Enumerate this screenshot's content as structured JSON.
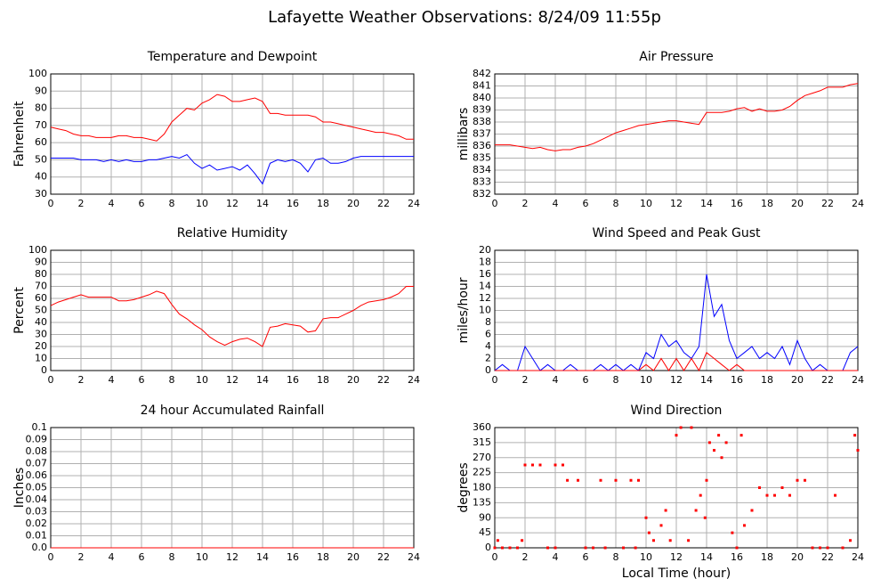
{
  "title": "Lafayette Weather Observations: 8/24/09 11:55p",
  "chart_data": [
    {
      "type": "line",
      "title": "Temperature and Dewpoint",
      "ylabel": "Fahrenheit",
      "xlim": [
        0,
        24
      ],
      "xticks": [
        0,
        2,
        4,
        6,
        8,
        10,
        12,
        14,
        16,
        18,
        20,
        22,
        24
      ],
      "ylim": [
        30,
        100
      ],
      "yticks": [
        30,
        40,
        50,
        60,
        70,
        80,
        90,
        100
      ],
      "grid": true,
      "x": [
        0,
        0.5,
        1,
        1.5,
        2,
        2.5,
        3,
        3.5,
        4,
        4.5,
        5,
        5.5,
        6,
        6.5,
        7,
        7.5,
        8,
        8.5,
        9,
        9.5,
        10,
        10.5,
        11,
        11.5,
        12,
        12.5,
        13,
        13.5,
        14,
        14.5,
        15,
        15.5,
        16,
        16.5,
        17,
        17.5,
        18,
        18.5,
        19,
        19.5,
        20,
        20.5,
        21,
        21.5,
        22,
        22.5,
        23,
        23.5,
        24
      ],
      "series": [
        {
          "color": "#ff0000",
          "values": [
            69,
            68,
            67,
            65,
            64,
            64,
            63,
            63,
            63,
            64,
            64,
            63,
            63,
            62,
            61,
            65,
            72,
            76,
            80,
            79,
            83,
            85,
            88,
            87,
            84,
            84,
            85,
            86,
            84,
            77,
            77,
            76,
            76,
            76,
            76,
            75,
            72,
            72,
            71,
            70,
            69,
            68,
            67,
            66,
            66,
            65,
            64,
            62,
            62
          ]
        },
        {
          "color": "#0000ff",
          "values": [
            51,
            51,
            51,
            51,
            50,
            50,
            50,
            49,
            50,
            49,
            50,
            49,
            49,
            50,
            50,
            51,
            52,
            51,
            53,
            48,
            45,
            47,
            44,
            45,
            46,
            44,
            47,
            42,
            36,
            48,
            50,
            49,
            50,
            48,
            43,
            50,
            51,
            48,
            48,
            49,
            51,
            52,
            52,
            52,
            52,
            52,
            52,
            52,
            52
          ]
        }
      ]
    },
    {
      "type": "line",
      "title": "Air Pressure",
      "ylabel": "millibars",
      "xlim": [
        0,
        24
      ],
      "xticks": [
        0,
        2,
        4,
        6,
        8,
        10,
        12,
        14,
        16,
        18,
        20,
        22,
        24
      ],
      "ylim": [
        832,
        842
      ],
      "yticks": [
        832,
        833,
        834,
        835,
        836,
        837,
        838,
        839,
        840,
        841,
        842
      ],
      "grid": true,
      "x": [
        0,
        0.5,
        1,
        1.5,
        2,
        2.5,
        3,
        3.5,
        4,
        4.5,
        5,
        5.5,
        6,
        6.5,
        7,
        7.5,
        8,
        8.5,
        9,
        9.5,
        10,
        10.5,
        11,
        11.5,
        12,
        12.5,
        13,
        13.5,
        14,
        14.5,
        15,
        15.5,
        16,
        16.5,
        17,
        17.5,
        18,
        18.5,
        19,
        19.5,
        20,
        20.5,
        21,
        21.5,
        22,
        22.5,
        23,
        23.5,
        24
      ],
      "series": [
        {
          "color": "#ff0000",
          "values": [
            836.1,
            836.1,
            836.1,
            836,
            835.9,
            835.8,
            835.9,
            835.7,
            835.6,
            835.7,
            835.7,
            835.9,
            836,
            836.2,
            836.5,
            836.8,
            837.1,
            837.3,
            837.5,
            837.7,
            837.8,
            837.9,
            838,
            838.1,
            838.1,
            838,
            837.9,
            837.8,
            838.8,
            838.8,
            838.8,
            838.9,
            839.1,
            839.2,
            838.9,
            839.1,
            838.9,
            838.9,
            839,
            839.3,
            839.8,
            840.2,
            840.4,
            840.6,
            840.9,
            840.9,
            840.9,
            841.1,
            841.2
          ]
        }
      ]
    },
    {
      "type": "line",
      "title": "Relative Humidity",
      "ylabel": "Percent",
      "xlim": [
        0,
        24
      ],
      "xticks": [
        0,
        2,
        4,
        6,
        8,
        10,
        12,
        14,
        16,
        18,
        20,
        22,
        24
      ],
      "ylim": [
        0,
        100
      ],
      "yticks": [
        0,
        10,
        20,
        30,
        40,
        50,
        60,
        70,
        80,
        90,
        100
      ],
      "grid": true,
      "x": [
        0,
        0.5,
        1,
        1.5,
        2,
        2.5,
        3,
        3.5,
        4,
        4.5,
        5,
        5.5,
        6,
        6.5,
        7,
        7.5,
        8,
        8.5,
        9,
        9.5,
        10,
        10.5,
        11,
        11.5,
        12,
        12.5,
        13,
        13.5,
        14,
        14.5,
        15,
        15.5,
        16,
        16.5,
        17,
        17.5,
        18,
        18.5,
        19,
        19.5,
        20,
        20.5,
        21,
        21.5,
        22,
        22.5,
        23,
        23.5,
        24
      ],
      "series": [
        {
          "color": "#ff0000",
          "values": [
            54,
            57,
            59,
            61,
            63,
            61,
            61,
            61,
            61,
            58,
            58,
            59,
            61,
            63,
            66,
            64,
            55,
            47,
            43,
            38,
            34,
            28,
            24,
            21,
            24,
            26,
            27,
            24,
            20,
            36,
            37,
            39,
            38,
            37,
            32,
            33,
            43,
            44,
            44,
            47,
            50,
            54,
            57,
            58,
            59,
            61,
            64,
            70,
            70
          ]
        }
      ]
    },
    {
      "type": "line",
      "title": "Wind Speed and Peak Gust",
      "ylabel": "miles/hour",
      "xlim": [
        0,
        24
      ],
      "xticks": [
        0,
        2,
        4,
        6,
        8,
        10,
        12,
        14,
        16,
        18,
        20,
        22,
        24
      ],
      "ylim": [
        0,
        20
      ],
      "yticks": [
        0,
        2,
        4,
        6,
        8,
        10,
        12,
        14,
        16,
        18,
        20
      ],
      "grid": true,
      "x": [
        0,
        0.5,
        1,
        1.5,
        2,
        2.5,
        3,
        3.5,
        4,
        4.5,
        5,
        5.5,
        6,
        6.5,
        7,
        7.5,
        8,
        8.5,
        9,
        9.5,
        10,
        10.5,
        11,
        11.5,
        12,
        12.5,
        13,
        13.5,
        14,
        14.5,
        15,
        15.5,
        16,
        16.5,
        17,
        17.5,
        18,
        18.5,
        19,
        19.5,
        20,
        20.5,
        21,
        21.5,
        22,
        22.5,
        23,
        23.5,
        24
      ],
      "series": [
        {
          "color": "#0000ff",
          "values": [
            0,
            1,
            0,
            0,
            4,
            2,
            0,
            1,
            0,
            0,
            1,
            0,
            0,
            0,
            1,
            0,
            1,
            0,
            1,
            0,
            3,
            2,
            6,
            4,
            5,
            3,
            2,
            4,
            16,
            9,
            11,
            5,
            2,
            3,
            4,
            2,
            3,
            2,
            4,
            1,
            5,
            2,
            0,
            1,
            0,
            0,
            0,
            3,
            4
          ]
        },
        {
          "color": "#ff0000",
          "values": [
            0,
            0,
            0,
            0,
            0,
            0,
            0,
            0,
            0,
            0,
            0,
            0,
            0,
            0,
            0,
            0,
            0,
            0,
            0,
            0,
            1,
            0,
            2,
            0,
            2,
            0,
            2,
            0,
            3,
            2,
            1,
            0,
            1,
            0,
            0,
            0,
            0,
            0,
            0,
            0,
            0,
            0,
            0,
            0,
            0,
            0,
            0,
            0,
            0
          ]
        }
      ]
    },
    {
      "type": "line",
      "title": "24 hour Accumulated Rainfall",
      "ylabel": "Inches",
      "xlim": [
        0,
        24
      ],
      "xticks": [
        0,
        2,
        4,
        6,
        8,
        10,
        12,
        14,
        16,
        18,
        20,
        22,
        24
      ],
      "ylim": [
        0,
        0.1
      ],
      "yticks": [
        {
          "value": 0,
          "label": "0.0"
        },
        0.01,
        0.02,
        0.03,
        0.04,
        0.05,
        0.06,
        0.07,
        0.08,
        0.09,
        {
          "value": 0.1,
          "label": "0.1"
        }
      ],
      "grid": true,
      "x": [
        0,
        24
      ],
      "series": [
        {
          "color": "#ff0000",
          "values": [
            0,
            0
          ]
        }
      ]
    },
    {
      "type": "scatter",
      "title": "Wind Direction",
      "ylabel": "degrees",
      "xlabel": "Local Time (hour)",
      "xlim": [
        0,
        24
      ],
      "xticks": [
        0,
        2,
        4,
        6,
        8,
        10,
        12,
        14,
        16,
        18,
        20,
        22,
        24
      ],
      "ylim": [
        0,
        360
      ],
      "yticks": [
        0,
        45,
        90,
        135,
        180,
        225,
        270,
        315,
        360
      ],
      "grid": true,
      "color": "#ff0000",
      "x": [
        0,
        0.2,
        0.5,
        1,
        1.5,
        1.8,
        2,
        2.5,
        3,
        3.5,
        4,
        4.5,
        4,
        4.8,
        5.5,
        6,
        6.5,
        7,
        7.3,
        8,
        8.5,
        9,
        9.3,
        9.5,
        10,
        10.2,
        10.5,
        11,
        11.3,
        11.6,
        12,
        12.3,
        12.8,
        13,
        13.3,
        13.6,
        13.9,
        14,
        14.2,
        14.5,
        14.8,
        15,
        15.3,
        15.7,
        16,
        16.3,
        16.5,
        17,
        17.5,
        18,
        18.5,
        19,
        19.5,
        20,
        20.5,
        21,
        21.5,
        22,
        22.5,
        23,
        23.5,
        23.8,
        24
      ],
      "values": [
        0,
        22,
        0,
        0,
        0,
        22,
        248,
        248,
        248,
        0,
        248,
        248,
        0,
        202,
        202,
        0,
        0,
        202,
        0,
        202,
        0,
        202,
        0,
        202,
        90,
        45,
        22,
        67,
        112,
        22,
        337,
        360,
        22,
        360,
        112,
        157,
        90,
        202,
        315,
        292,
        337,
        270,
        315,
        45,
        0,
        337,
        67,
        112,
        180,
        157,
        157,
        180,
        157,
        202,
        202,
        0,
        0,
        0,
        157,
        0,
        22,
        337,
        292
      ]
    }
  ]
}
